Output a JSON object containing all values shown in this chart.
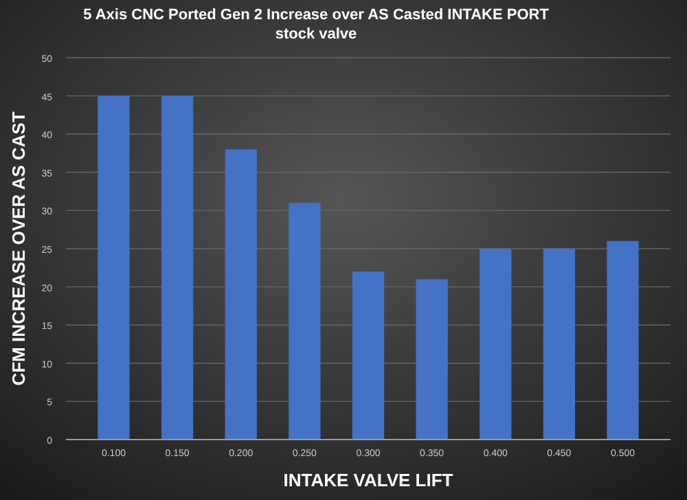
{
  "chart_data": {
    "type": "bar",
    "title": "5 Axis CNC Ported  Gen 2 Increase  over AS Casted INTAKE  PORT stock valve",
    "xlabel": "INTAKE VALVE LIFT",
    "ylabel": "CFM INCREASE OVER AS CAST",
    "categories": [
      "0.100",
      "0.150",
      "0.200",
      "0.250",
      "0.300",
      "0.350",
      "0.400",
      "0.450",
      "0.500"
    ],
    "values": [
      45,
      45,
      38,
      31,
      22,
      21,
      25,
      25,
      26
    ],
    "color": "#4472c4",
    "ylim": [
      0,
      50
    ],
    "yticks": [
      0,
      5,
      10,
      15,
      20,
      25,
      30,
      35,
      40,
      45,
      50
    ],
    "grid": "y"
  }
}
